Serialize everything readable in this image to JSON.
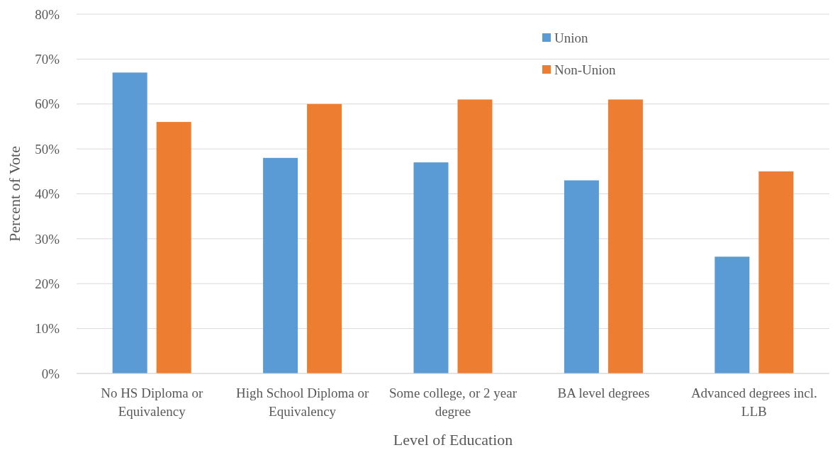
{
  "chart_data": {
    "type": "bar",
    "xlabel": "Level of Education",
    "ylabel": "Percent of Vote",
    "categories": [
      "No HS Diploma or Equivalency",
      "High School Diploma or Equivalency",
      "Some college, or 2 year degree",
      "BA level degrees",
      "Advanced degrees incl. LLB"
    ],
    "series": [
      {
        "name": "Union",
        "color": "#5b9bd5",
        "values": [
          67,
          48,
          47,
          43,
          26
        ]
      },
      {
        "name": "Non-Union",
        "color": "#ed7d31",
        "values": [
          56,
          60,
          61,
          61,
          45
        ]
      }
    ],
    "ylim": [
      0,
      80
    ],
    "yticks": [
      {
        "value": 0,
        "label": "0%"
      },
      {
        "value": 10,
        "label": "10%"
      },
      {
        "value": 20,
        "label": "20%"
      },
      {
        "value": 30,
        "label": "30%"
      },
      {
        "value": 40,
        "label": "40%"
      },
      {
        "value": 50,
        "label": "50%"
      },
      {
        "value": 60,
        "label": "60%"
      },
      {
        "value": 70,
        "label": "70%"
      },
      {
        "value": 80,
        "label": "80%"
      }
    ],
    "grid": "y",
    "legend": "top right"
  }
}
